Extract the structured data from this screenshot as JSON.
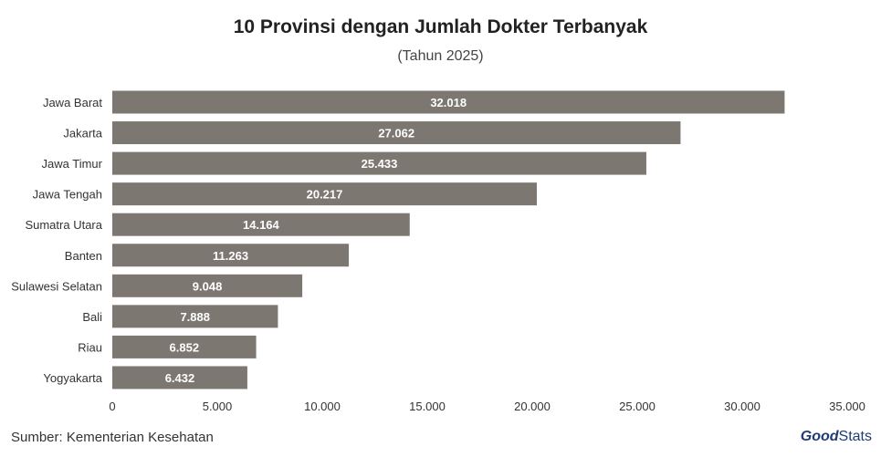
{
  "chart_data": {
    "type": "bar",
    "orientation": "horizontal",
    "title": "10 Provinsi dengan Jumlah Dokter Terbanyak",
    "subtitle": "(Tahun 2025)",
    "categories": [
      "Jawa Barat",
      "Jakarta",
      "Jawa Timur",
      "Jawa Tengah",
      "Sumatra Utara",
      "Banten",
      "Sulawesi Selatan",
      "Bali",
      "Riau",
      "Yogyakarta"
    ],
    "values": [
      32018,
      27062,
      25433,
      20217,
      14164,
      11263,
      9048,
      7888,
      6852,
      6432
    ],
    "value_labels": [
      "32.018",
      "27.062",
      "25.433",
      "20.217",
      "14.164",
      "11.263",
      "9.048",
      "7.888",
      "6.852",
      "6.432"
    ],
    "xlim": [
      0,
      35000
    ],
    "xticks": [
      0,
      5000,
      10000,
      15000,
      20000,
      25000,
      30000,
      35000
    ],
    "xtick_labels": [
      "0",
      "5.000",
      "10.000",
      "15.000",
      "20.000",
      "25.000",
      "30.000",
      "35.000"
    ],
    "bar_color": "#7d7771",
    "grid": false,
    "legend": "none"
  },
  "source": "Sumber: Kementerian Kesehatan",
  "logo": {
    "good": "Good",
    "stats": "Stats",
    "color": "#1f3b73"
  }
}
